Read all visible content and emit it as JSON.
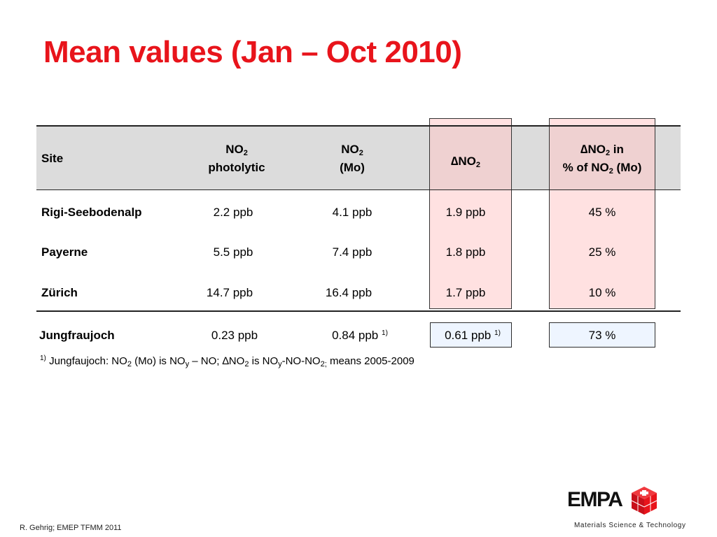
{
  "title": "Mean values (Jan – Oct 2010)",
  "table": {
    "headers": {
      "site": "Site",
      "no2_photolytic_1": "NO",
      "no2_photolytic_sub": "2",
      "no2_photolytic_2": "photolytic",
      "no2_mo_1": "NO",
      "no2_mo_sub": "2",
      "no2_mo_2": "(Mo)",
      "delta_no2_1": "∆NO",
      "delta_no2_sub": "2",
      "delta_pct_a": "∆NO",
      "delta_pct_a_sub": "2",
      "delta_pct_a_tail": " in",
      "delta_pct_b": "% of NO",
      "delta_pct_b_sub": "2",
      "delta_pct_b_tail": " (Mo)"
    },
    "rows": [
      {
        "site": "Rigi-Seebodenalp",
        "photolytic": "2.2 ppb",
        "mo": "4.1 ppb",
        "delta": "1.9 ppb",
        "pct": "45 %"
      },
      {
        "site": "Payerne",
        "photolytic": "5.5 ppb",
        "mo": "7.4 ppb",
        "delta": "1.8 ppb",
        "pct": "25 %"
      },
      {
        "site": "Zürich",
        "photolytic": "14.7 ppb",
        "mo": "16.4 ppb",
        "delta": "1.7 ppb",
        "pct": "10 %"
      }
    ],
    "extra_row": {
      "site": "Jungfraujoch",
      "photolytic": "0.23 ppb",
      "mo": "0.84 ppb",
      "mo_sup": "1)",
      "delta": "0.61 ppb",
      "delta_sup": "1)",
      "pct": "73 %"
    }
  },
  "footnote": {
    "mark": "1)",
    "p1": " Jungfaujoch: NO",
    "s1": "2",
    "p2": " (Mo) is NO",
    "s2": "y",
    "p3": " – NO;   ∆NO",
    "s3": "2",
    "p4": " is NO",
    "s4": "y",
    "p5": "-NO-NO",
    "s5": "2;",
    "p6": " means 2005-2009"
  },
  "credit": "R. Gehrig; EMEP TFMM 2011",
  "logo": {
    "text": "EMPA",
    "icon": "swiss-cross-cube-icon",
    "color": "#e8141b"
  },
  "tagline": "Materials Science & Technology",
  "colors": {
    "title": "#e8141b",
    "header_band": "#dcdcdc",
    "highlight": "#ffd0d0",
    "box": "#eef5ff"
  }
}
